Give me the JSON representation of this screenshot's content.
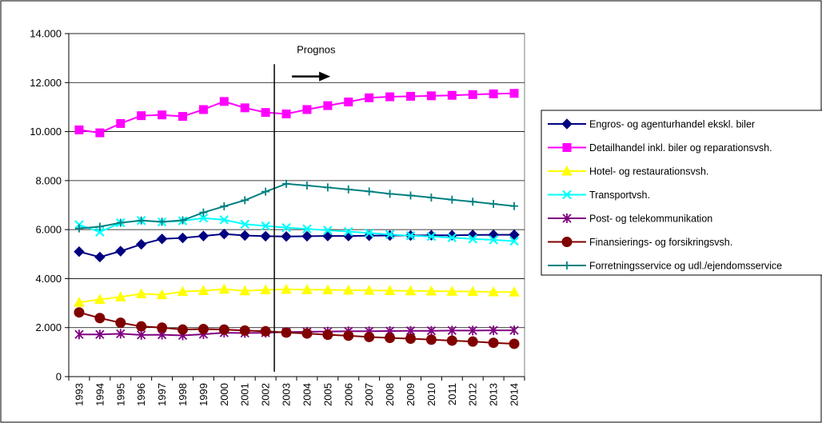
{
  "chart_data": {
    "type": "line",
    "title": "",
    "xlabel": "",
    "ylabel": "",
    "ylim": [
      0,
      14000
    ],
    "yticks": [
      0,
      2000,
      4000,
      6000,
      8000,
      10000,
      12000,
      14000
    ],
    "ytick_labels": [
      "0",
      "2.000",
      "4.000",
      "6.000",
      "8.000",
      "10.000",
      "12.000",
      "14.000"
    ],
    "grid": "horizontal",
    "legend_position": "right",
    "categories": [
      "1993",
      "1994",
      "1995",
      "1996",
      "1997",
      "1998",
      "1999",
      "2000",
      "2001",
      "2002",
      "2003",
      "2004",
      "2005",
      "2006",
      "2007",
      "2008",
      "2009",
      "2010",
      "2011",
      "2012",
      "2013",
      "2014"
    ],
    "annotation": {
      "text": "Prognos",
      "at_category": "2003"
    },
    "series": [
      {
        "name": "Engros- og agenturhandel ekskl. biler",
        "color": "#000080",
        "marker": "diamond",
        "values": [
          5100,
          4880,
          5120,
          5400,
          5620,
          5660,
          5740,
          5820,
          5760,
          5730,
          5720,
          5730,
          5740,
          5740,
          5750,
          5760,
          5760,
          5770,
          5770,
          5780,
          5790,
          5790
        ]
      },
      {
        "name": "Detailhandel inkl. biler og reparationsvsh.",
        "color": "#ff00ff",
        "marker": "square",
        "values": [
          10070,
          9950,
          10330,
          10650,
          10680,
          10620,
          10900,
          11230,
          10970,
          10780,
          10720,
          10900,
          11060,
          11210,
          11380,
          11420,
          11440,
          11460,
          11480,
          11510,
          11540,
          11560
        ]
      },
      {
        "name": "Hotel- og restaurationsvsh.",
        "color": "#ffff00",
        "marker": "triangle",
        "values": [
          3030,
          3150,
          3250,
          3380,
          3340,
          3470,
          3510,
          3570,
          3500,
          3540,
          3560,
          3550,
          3540,
          3530,
          3520,
          3510,
          3500,
          3490,
          3480,
          3470,
          3460,
          3450
        ]
      },
      {
        "name": "Transportvsh.",
        "color": "#00ffff",
        "marker": "x",
        "values": [
          6200,
          5900,
          6280,
          6370,
          6310,
          6360,
          6470,
          6400,
          6220,
          6150,
          6080,
          6030,
          5970,
          5920,
          5860,
          5800,
          5750,
          5720,
          5670,
          5620,
          5580,
          5530
        ]
      },
      {
        "name": "Post- og telekommunikation",
        "color": "#800080",
        "marker": "star",
        "values": [
          1720,
          1720,
          1750,
          1700,
          1710,
          1680,
          1730,
          1790,
          1780,
          1790,
          1820,
          1830,
          1840,
          1850,
          1850,
          1860,
          1870,
          1870,
          1880,
          1880,
          1890,
          1890
        ]
      },
      {
        "name": "Finansierings- og forsikringsvsh.",
        "color": "#800000",
        "marker": "circle",
        "values": [
          2620,
          2390,
          2200,
          2050,
          2000,
          1920,
          1940,
          1920,
          1880,
          1850,
          1800,
          1760,
          1710,
          1670,
          1620,
          1580,
          1550,
          1510,
          1470,
          1430,
          1380,
          1340
        ]
      },
      {
        "name": "Forretningsservice og udl./ejendomsservice",
        "color": "#008080",
        "marker": "plus",
        "values": [
          6050,
          6120,
          6280,
          6370,
          6320,
          6380,
          6700,
          6950,
          7200,
          7550,
          7870,
          7800,
          7720,
          7640,
          7560,
          7460,
          7390,
          7310,
          7220,
          7140,
          7050,
          6960
        ]
      }
    ]
  }
}
